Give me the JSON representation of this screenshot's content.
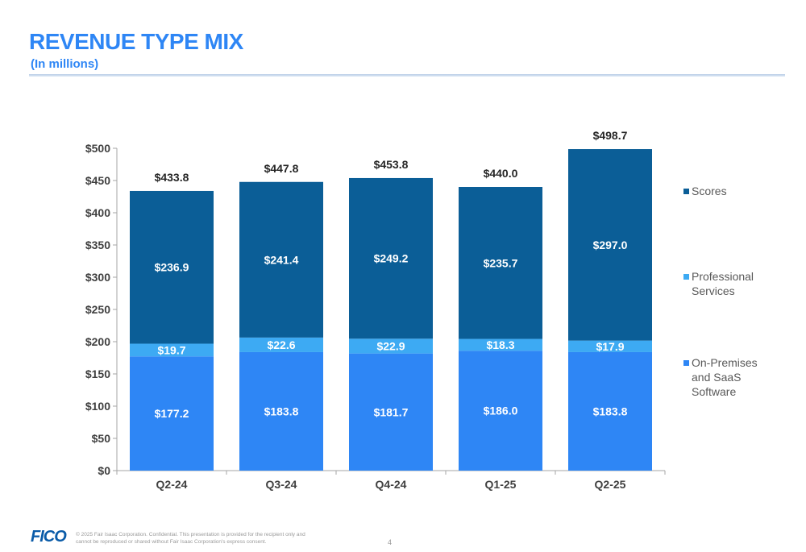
{
  "header": {
    "title": "REVENUE TYPE MIX",
    "subtitle": "(In millions)"
  },
  "footer": {
    "logo": "FICO",
    "copyright": "© 2025 Fair Isaac Corporation. Confidential. This presentation is provided for the recipient only and cannot be reproduced or shared without Fair Isaac Corporation's express consent.",
    "page_number": "4"
  },
  "colors": {
    "title": "#2e86f5",
    "scores": "#0b5e97",
    "professional_services": "#3daaf3",
    "on_premises_saas": "#2e86f5"
  },
  "chart_data": {
    "type": "bar",
    "stacked": true,
    "categories": [
      "Q2-24",
      "Q3-24",
      "Q4-24",
      "Q1-25",
      "Q2-25"
    ],
    "series": [
      {
        "name": "On-Premises and SaaS Software",
        "values": [
          177.2,
          183.8,
          181.7,
          186.0,
          183.8
        ],
        "labels": [
          "$177.2",
          "$183.8",
          "$181.7",
          "$186.0",
          "$183.8"
        ]
      },
      {
        "name": "Professional Services",
        "values": [
          19.7,
          22.6,
          22.9,
          18.3,
          17.9
        ],
        "labels": [
          "$19.7",
          "$22.6",
          "$22.9",
          "$18.3",
          "$17.9"
        ]
      },
      {
        "name": "Scores",
        "values": [
          236.9,
          241.4,
          249.2,
          235.7,
          297.0
        ],
        "labels": [
          "$236.9",
          "$241.4",
          "$249.2",
          "$235.7",
          "$297.0"
        ]
      }
    ],
    "totals": [
      433.8,
      447.8,
      453.8,
      440.0,
      498.7
    ],
    "total_labels": [
      "$433.8",
      "$447.8",
      "$453.8",
      "$440.0",
      "$498.7"
    ],
    "ylim": [
      0,
      500
    ],
    "yticks": [
      0,
      50,
      100,
      150,
      200,
      250,
      300,
      350,
      400,
      450,
      500
    ],
    "ytick_labels": [
      "$0",
      "$50",
      "$100",
      "$150",
      "$200",
      "$250",
      "$300",
      "$350",
      "$400",
      "$450",
      "$500"
    ],
    "legend": {
      "position": "right",
      "entries": [
        {
          "lines": [
            "Scores"
          ],
          "series_index": 2
        },
        {
          "lines": [
            "Professional",
            "Services"
          ],
          "series_index": 1
        },
        {
          "lines": [
            "On-Premises",
            "and SaaS",
            "Software"
          ],
          "series_index": 0
        }
      ]
    },
    "grid": false
  }
}
